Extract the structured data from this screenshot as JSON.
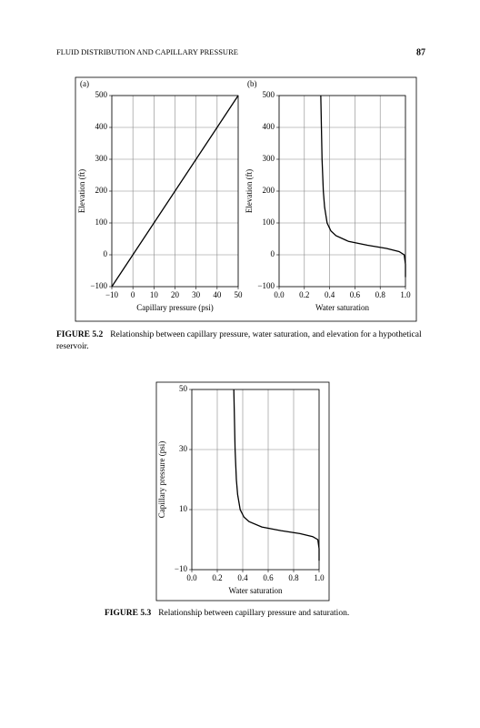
{
  "header": {
    "title": "FLUID DISTRIBUTION AND CAPILLARY PRESSURE",
    "page": "87"
  },
  "captions": [
    {
      "label": "FIGURE 5.2",
      "text": "Relationship between capillary pressure, water saturation, and elevation for a hypothetical reservoir."
    },
    {
      "label": "FIGURE 5.3",
      "text": "Relationship between capillary pressure and saturation."
    }
  ],
  "chart_data": [
    {
      "type": "line",
      "panel_label": "(a)",
      "xlabel": "Capillary pressure (psi)",
      "ylabel": "Elevation (ft)",
      "x": [
        -10,
        50
      ],
      "series": [
        {
          "color": "#000000",
          "values": [
            -100,
            500
          ]
        }
      ],
      "xlim": [
        -10,
        50
      ],
      "ylim": [
        -100,
        500
      ],
      "xticks": [
        {
          "value": -10,
          "label": "−10"
        },
        0,
        10,
        20,
        30,
        40,
        50
      ],
      "yticks": [
        {
          "value": -100,
          "label": "−100"
        },
        0,
        100,
        200,
        300,
        400,
        500
      ],
      "grid": true
    },
    {
      "type": "line",
      "panel_label": "(b)",
      "xlabel": "Water saturation",
      "ylabel": "Elevation (ft)",
      "x": [
        0.33,
        0.335,
        0.34,
        0.35,
        0.36,
        0.38,
        0.41,
        0.45,
        0.55,
        0.7,
        0.85,
        0.95,
        0.99,
        1.0,
        1.0
      ],
      "series": [
        {
          "color": "#000000",
          "values": [
            500,
            400,
            300,
            200,
            150,
            100,
            75,
            60,
            42,
            30,
            20,
            10,
            0,
            -30,
            -70
          ]
        }
      ],
      "xlim": [
        0,
        1
      ],
      "ylim": [
        -100,
        500
      ],
      "xticks": [
        {
          "value": 0,
          "label": "0.0"
        },
        0.2,
        0.4,
        0.6,
        0.8,
        {
          "value": 1,
          "label": "1.0"
        }
      ],
      "yticks": [
        {
          "value": -100,
          "label": "−100"
        },
        0,
        100,
        200,
        300,
        400,
        500
      ],
      "grid": true
    },
    {
      "type": "line",
      "xlabel": "Water saturation",
      "ylabel": "Capillary pressure (psi)",
      "x": [
        0.33,
        0.335,
        0.34,
        0.35,
        0.36,
        0.38,
        0.41,
        0.45,
        0.55,
        0.7,
        0.85,
        0.95,
        0.99,
        1.0,
        1.0
      ],
      "series": [
        {
          "color": "#000000",
          "values": [
            50,
            40,
            30,
            20,
            15,
            10,
            7.5,
            6,
            4.2,
            3,
            2,
            1,
            0,
            -3,
            -7
          ]
        }
      ],
      "xlim": [
        0,
        1
      ],
      "ylim": [
        -10,
        50
      ],
      "xticks": [
        {
          "value": 0,
          "label": "0.0"
        },
        0.2,
        0.4,
        0.6,
        0.8,
        {
          "value": 1,
          "label": "1.0"
        }
      ],
      "yticks": [
        {
          "value": -10,
          "label": "−10"
        },
        10,
        30,
        50
      ],
      "grid": true
    }
  ]
}
